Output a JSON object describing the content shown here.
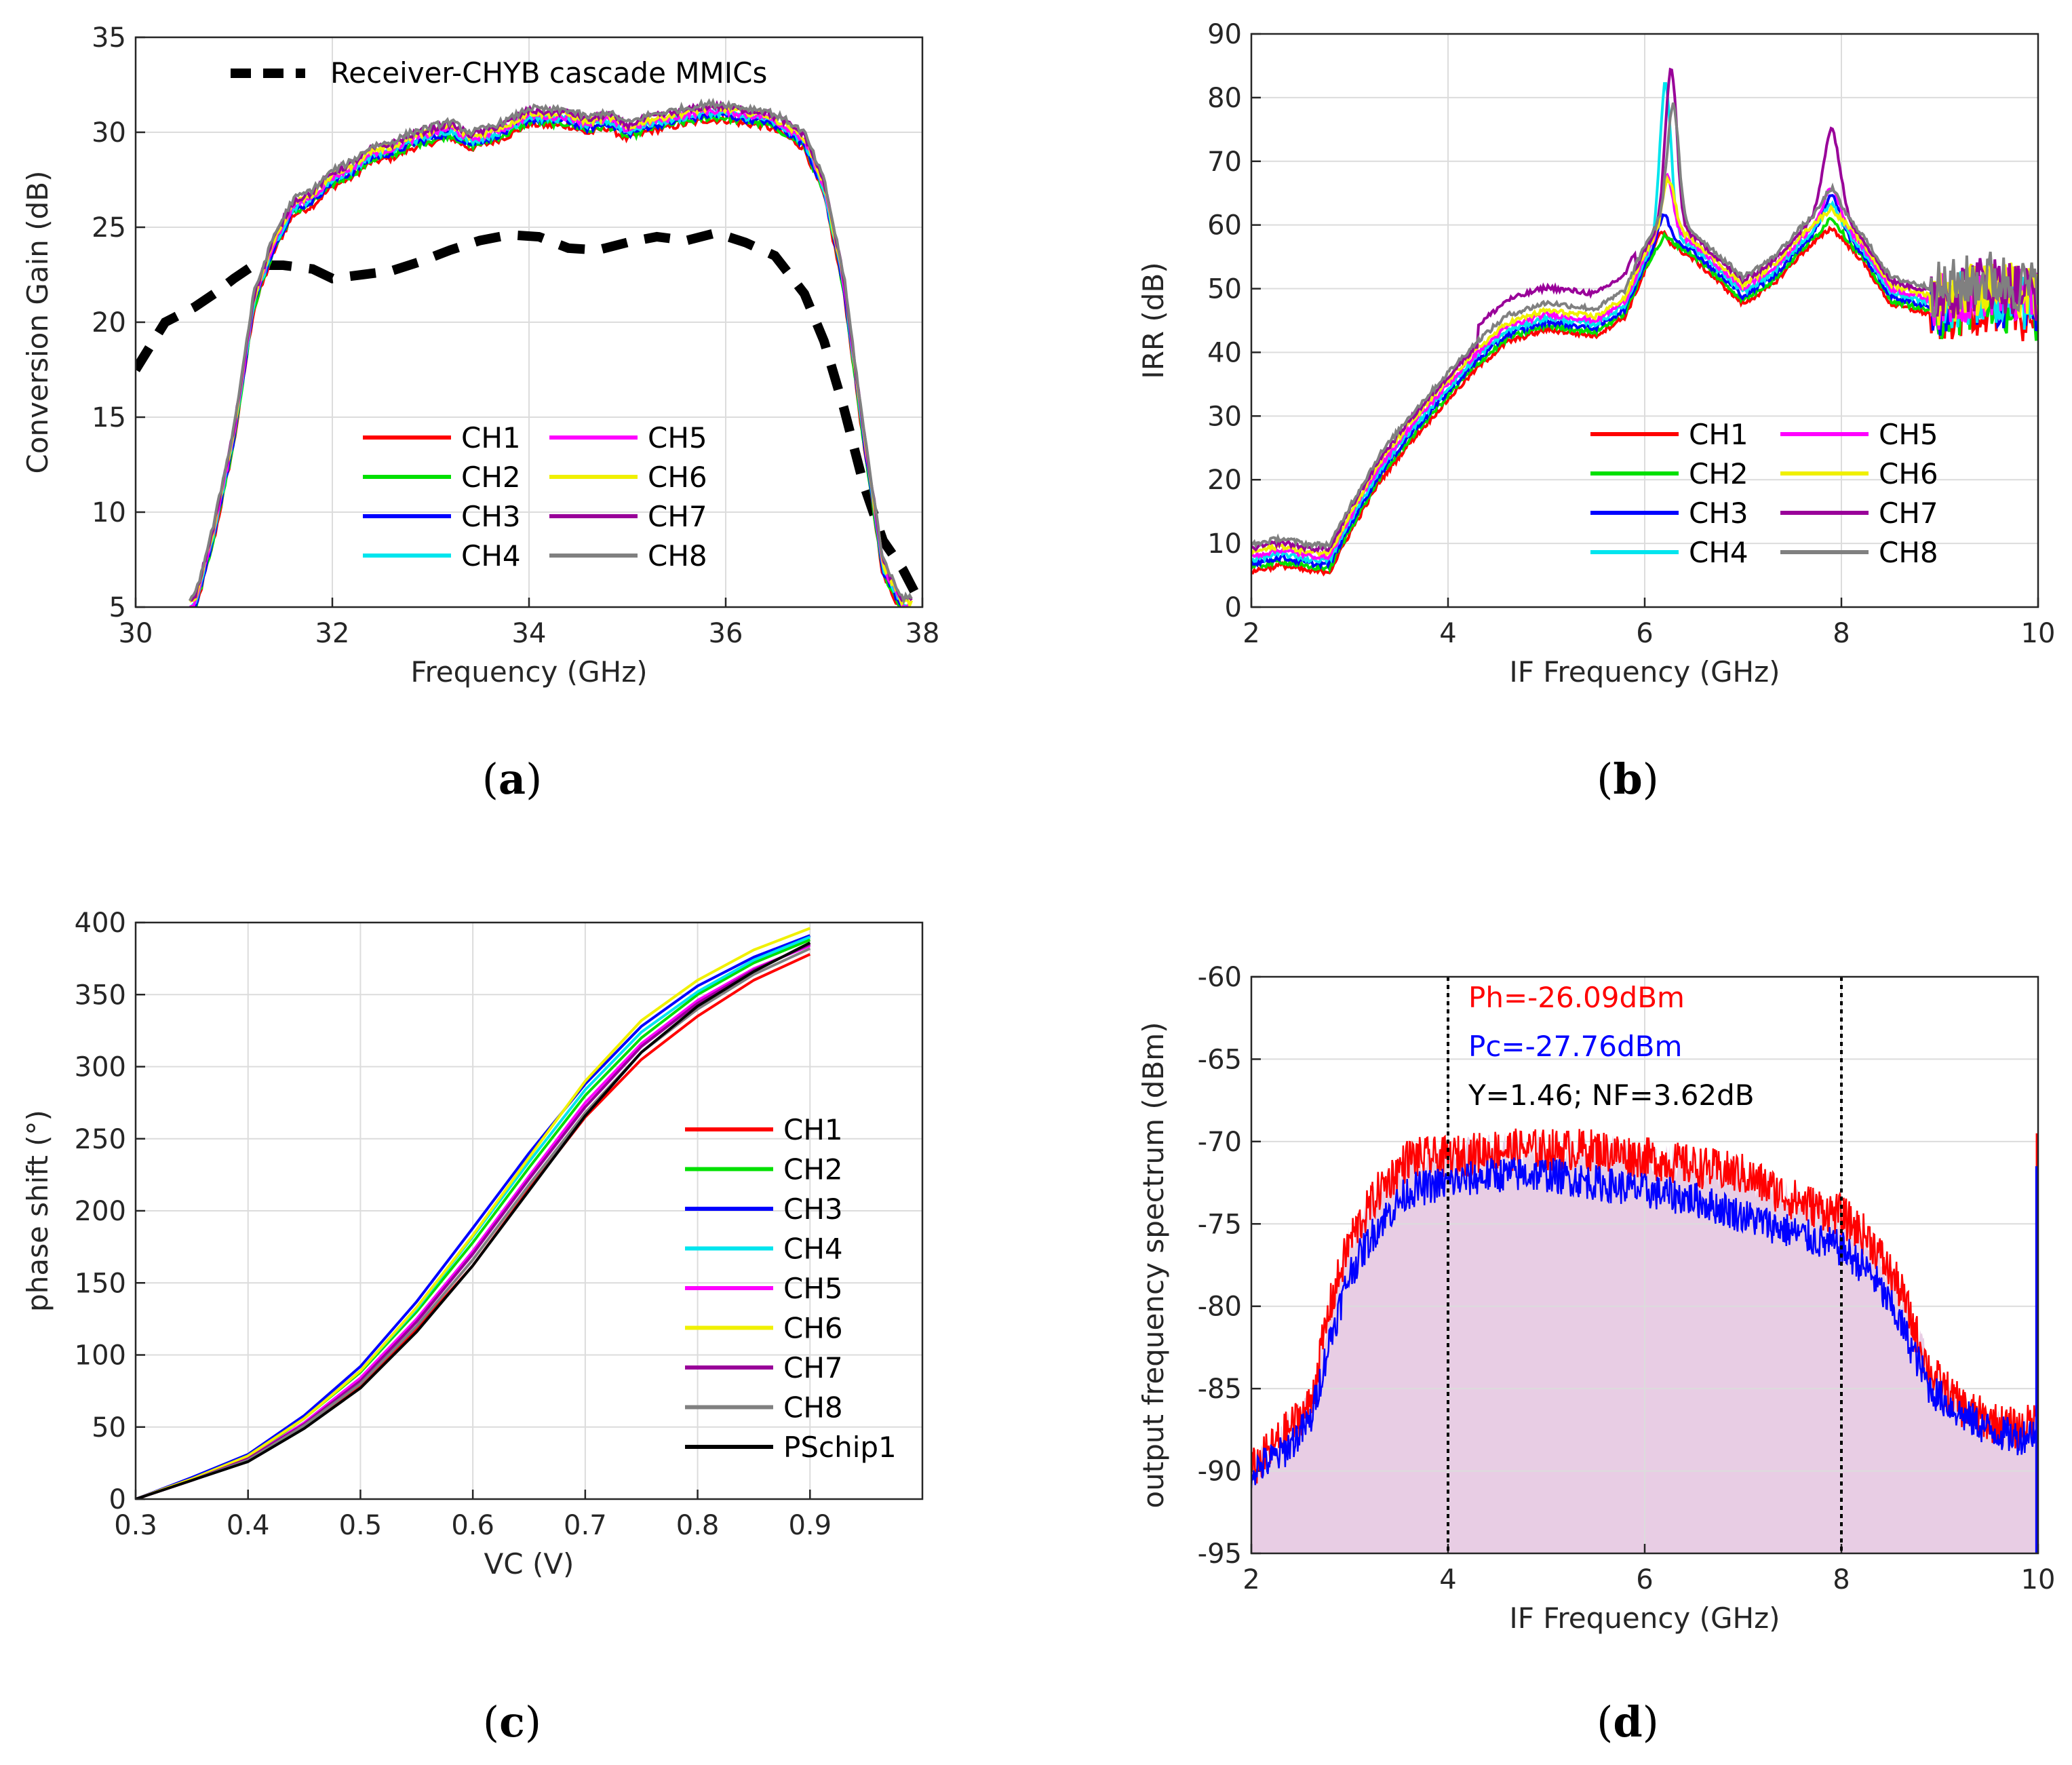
{
  "chart_data": [
    {
      "id": "a",
      "type": "line",
      "panel_label": "a",
      "xlabel": "Frequency (GHz)",
      "ylabel": "Conversion Gain (dB)",
      "xlim": [
        30,
        38
      ],
      "ylim": [
        5,
        35
      ],
      "xticks": [
        "30",
        "32",
        "34",
        "36",
        "38"
      ],
      "yticks": [
        "5",
        "10",
        "15",
        "20",
        "25",
        "30",
        "35"
      ],
      "grid": true,
      "legend_position": "lower-center",
      "series": [
        {
          "name": "Receiver-CHYB cascade MMICs",
          "color": "#000000",
          "dash": true,
          "x": [
            30,
            30.3,
            30.6,
            30.8,
            31,
            31.2,
            31.5,
            31.8,
            32,
            32.3,
            32.6,
            32.9,
            33.2,
            33.5,
            33.8,
            34.1,
            34.4,
            34.7,
            35,
            35.3,
            35.6,
            35.9,
            36.2,
            36.5,
            36.8,
            37.0,
            37.2,
            37.4,
            37.6,
            37.8,
            37.95
          ],
          "y": [
            17.5,
            20,
            20.8,
            21.5,
            22.3,
            23,
            23,
            22.8,
            22.3,
            22.5,
            22.7,
            23.2,
            23.8,
            24.3,
            24.6,
            24.5,
            23.9,
            23.8,
            24.2,
            24.5,
            24.3,
            24.7,
            24.2,
            23.5,
            21.5,
            19,
            15.5,
            11.5,
            8.5,
            7,
            5.5
          ]
        },
        {
          "name": "CH1",
          "color": "#ff0000"
        },
        {
          "name": "CH2",
          "color": "#00e000"
        },
        {
          "name": "CH3",
          "color": "#0000ff"
        },
        {
          "name": "CH4",
          "color": "#00e5ee"
        },
        {
          "name": "CH5",
          "color": "#ff00ff"
        },
        {
          "name": "CH6",
          "color": "#f0f000"
        },
        {
          "name": "CH7",
          "color": "#990099"
        },
        {
          "name": "CH8",
          "color": "#808080"
        }
      ],
      "channel_curve": {
        "x": [
          30.6,
          30.8,
          31.0,
          31.2,
          31.4,
          31.6,
          31.8,
          32.0,
          32.2,
          32.4,
          32.6,
          32.8,
          33.0,
          33.2,
          33.4,
          33.6,
          33.8,
          34.0,
          34.2,
          34.4,
          34.6,
          34.8,
          35.0,
          35.2,
          35.4,
          35.6,
          35.8,
          36.0,
          36.2,
          36.4,
          36.6,
          36.8,
          37.0,
          37.2,
          37.4,
          37.6,
          37.8
        ],
        "y": [
          5,
          9,
          14,
          21,
          24,
          26,
          26.5,
          27.5,
          28,
          28.8,
          29,
          29.5,
          29.8,
          30.1,
          29.5,
          29.8,
          30.2,
          30.8,
          30.7,
          30.7,
          30.3,
          30.6,
          30,
          30.4,
          30.6,
          30.8,
          31,
          31,
          30.8,
          30.7,
          30.2,
          29.5,
          27,
          22,
          14,
          7,
          5
        ]
      }
    },
    {
      "id": "b",
      "type": "line",
      "panel_label": "b",
      "xlabel": "IF Frequency (GHz)",
      "ylabel": "IRR (dB)",
      "xlim": [
        2,
        10
      ],
      "ylim": [
        0,
        90
      ],
      "xticks": [
        "2",
        "4",
        "6",
        "8",
        "10"
      ],
      "yticks": [
        "0",
        "10",
        "20",
        "30",
        "40",
        "50",
        "60",
        "70",
        "80",
        "90"
      ],
      "grid": true,
      "legend_position": "lower-right",
      "series": [
        {
          "name": "CH1",
          "color": "#ff0000",
          "peak1": 62,
          "peak2": 62
        },
        {
          "name": "CH2",
          "color": "#00e000",
          "peak1": 60,
          "peak2": 63
        },
        {
          "name": "CH3",
          "color": "#0000ff",
          "peak1": 63,
          "peak2": 66
        },
        {
          "name": "CH4",
          "color": "#00e5ee",
          "peak1": 83,
          "peak2": 64
        },
        {
          "name": "CH5",
          "color": "#ff00ff",
          "peak1": 68,
          "peak2": 66
        },
        {
          "name": "CH6",
          "color": "#f0f000",
          "peak1": 67,
          "peak2": 62
        },
        {
          "name": "CH7",
          "color": "#990099",
          "peak1": 84,
          "peak2": 74
        },
        {
          "name": "CH8",
          "color": "#808080",
          "peak1": 78,
          "peak2": 64
        }
      ],
      "base_curve": {
        "x": [
          2,
          2.3,
          2.6,
          2.8,
          3.0,
          3.3,
          3.6,
          4.0,
          4.3,
          4.6,
          5.0,
          5.5,
          5.8,
          6.0,
          6.2,
          6.5,
          7.0,
          7.3,
          7.6,
          7.9,
          8.2,
          8.5,
          9.0,
          9.5,
          10
        ],
        "y": [
          8,
          9,
          8,
          8,
          14,
          22,
          28,
          35,
          40,
          44,
          46,
          45,
          48,
          55,
          60,
          57,
          50,
          53,
          58,
          62,
          57,
          50,
          48,
          50,
          48
        ]
      }
    },
    {
      "id": "c",
      "type": "line",
      "panel_label": "c",
      "xlabel": "VC (V)",
      "ylabel": "phase shift (°)",
      "xlim": [
        0.3,
        1.0
      ],
      "ylim": [
        0,
        400
      ],
      "xticks": [
        "0.3",
        "0.4",
        "0.5",
        "0.6",
        "0.7",
        "0.8",
        "0.9"
      ],
      "yticks": [
        "0",
        "50",
        "100",
        "150",
        "200",
        "250",
        "300",
        "350",
        "400"
      ],
      "grid": true,
      "legend_position": "right",
      "x": [
        0.3,
        0.35,
        0.4,
        0.45,
        0.5,
        0.55,
        0.6,
        0.65,
        0.7,
        0.75,
        0.8,
        0.85,
        0.9
      ],
      "series": [
        {
          "name": "CH1",
          "color": "#ff0000",
          "y": [
            0,
            13,
            27,
            50,
            78,
            118,
            162,
            215,
            265,
            305,
            335,
            360,
            378
          ]
        },
        {
          "name": "CH2",
          "color": "#00e000",
          "y": [
            0,
            14,
            29,
            56,
            88,
            130,
            178,
            230,
            280,
            320,
            350,
            372,
            388
          ]
        },
        {
          "name": "CH3",
          "color": "#0000ff",
          "y": [
            0,
            15,
            31,
            58,
            92,
            137,
            188,
            240,
            288,
            328,
            356,
            376,
            391
          ]
        },
        {
          "name": "CH4",
          "color": "#00e5ee",
          "y": [
            0,
            14,
            30,
            56,
            89,
            132,
            182,
            234,
            284,
            324,
            352,
            374,
            390
          ]
        },
        {
          "name": "CH5",
          "color": "#ff00ff",
          "y": [
            0,
            14,
            28,
            53,
            84,
            125,
            172,
            224,
            275,
            316,
            346,
            368,
            384
          ]
        },
        {
          "name": "CH6",
          "color": "#f0f000",
          "y": [
            0,
            14,
            30,
            56,
            89,
            133,
            183,
            237,
            290,
            332,
            360,
            381,
            396
          ]
        },
        {
          "name": "CH7",
          "color": "#990099",
          "y": [
            0,
            13,
            28,
            52,
            82,
            123,
            170,
            222,
            272,
            314,
            344,
            367,
            385
          ]
        },
        {
          "name": "CH8",
          "color": "#808080",
          "y": [
            0,
            13,
            27,
            51,
            80,
            120,
            166,
            218,
            268,
            310,
            340,
            364,
            382
          ]
        },
        {
          "name": "PSchip1",
          "color": "#000000",
          "y": [
            0,
            13,
            26,
            49,
            77,
            116,
            162,
            214,
            266,
            310,
            342,
            366,
            386
          ]
        }
      ]
    },
    {
      "id": "d",
      "type": "area",
      "panel_label": "d",
      "xlabel": "IF Frequency (GHz)",
      "ylabel": "output frequency spectrum (dBm)",
      "xlim": [
        2,
        10
      ],
      "ylim": [
        -95,
        -60
      ],
      "xticks": [
        "2",
        "4",
        "6",
        "8",
        "10"
      ],
      "yticks": [
        "-95",
        "-90",
        "-85",
        "-80",
        "-75",
        "-70",
        "-65",
        "-60"
      ],
      "grid": true,
      "fill_color": "#e8cde4",
      "markers": [
        4,
        8
      ],
      "annotations": [
        {
          "text": "Ph=-26.09dBm",
          "color": "#ff0000"
        },
        {
          "text": "Pc=-27.76dBm",
          "color": "#0000ff"
        },
        {
          "text": "Y=1.46; NF=3.62dB",
          "color": "#000000"
        }
      ],
      "series": [
        {
          "name": "Ph",
          "color": "#ff0000",
          "x": [
            2,
            2.3,
            2.6,
            2.8,
            3.0,
            3.3,
            3.6,
            4.0,
            4.5,
            5.0,
            5.5,
            6.0,
            6.5,
            7.0,
            7.5,
            8.0,
            8.3,
            8.6,
            8.9,
            9.2,
            9.5,
            9.8,
            9.98
          ],
          "y": [
            -90,
            -88,
            -86,
            -80,
            -76,
            -73,
            -71,
            -71,
            -70.5,
            -70.5,
            -70.5,
            -71,
            -71.5,
            -72,
            -73.5,
            -74.5,
            -76,
            -79,
            -84,
            -86,
            -87,
            -87.5,
            -87
          ]
        },
        {
          "name": "Pc",
          "color": "#0000ff",
          "x": [
            2,
            2.3,
            2.6,
            2.8,
            3.0,
            3.3,
            3.6,
            4.0,
            4.5,
            5.0,
            5.5,
            6.0,
            6.5,
            7.0,
            7.5,
            8.0,
            8.3,
            8.6,
            8.9,
            9.2,
            9.5,
            9.8,
            9.98
          ],
          "y": [
            -90,
            -89,
            -87,
            -82,
            -78,
            -75,
            -73,
            -72.5,
            -72,
            -72,
            -72.5,
            -73,
            -73.5,
            -74.5,
            -75.5,
            -76.5,
            -78,
            -81,
            -85,
            -86.5,
            -87.5,
            -88,
            -87.5
          ]
        }
      ]
    }
  ]
}
